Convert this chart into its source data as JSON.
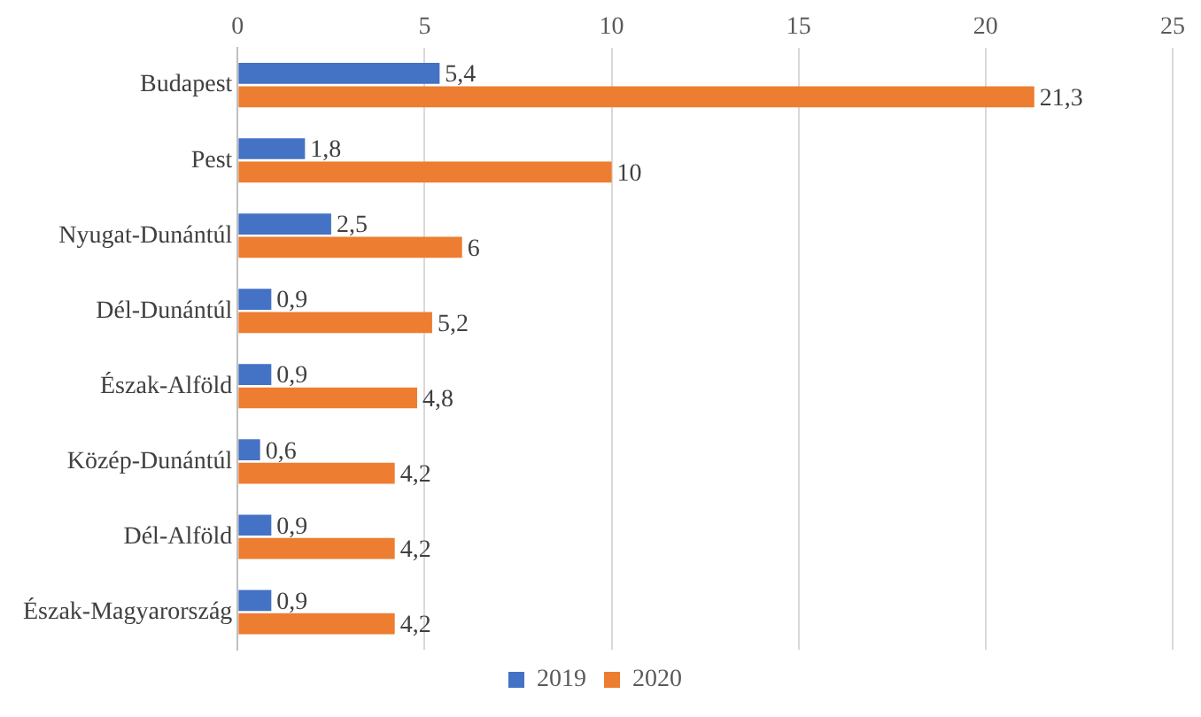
{
  "chart_data": {
    "type": "bar",
    "orientation": "horizontal",
    "categories": [
      "Budapest",
      "Pest",
      "Nyugat-Dunántúl",
      "Dél-Dunántúl",
      "Észak-Alföld",
      "Közép-Dunántúl",
      "Dél-Alföld",
      "Észak-Magyarország"
    ],
    "series": [
      {
        "name": "2019",
        "color": "#4472c4",
        "values": [
          5.4,
          1.8,
          2.5,
          0.9,
          0.9,
          0.6,
          0.9,
          0.9
        ],
        "value_labels": [
          "5,4",
          "1,8",
          "2,5",
          "0,9",
          "0,9",
          "0,6",
          "0,9",
          "0,9"
        ]
      },
      {
        "name": "2020",
        "color": "#ed7d31",
        "values": [
          21.3,
          10,
          6,
          5.2,
          4.8,
          4.2,
          4.2,
          4.2
        ],
        "value_labels": [
          "21,3",
          "10",
          "6",
          "5,2",
          "4,8",
          "4,2",
          "4,2",
          "4,2"
        ]
      }
    ],
    "xlim": [
      0,
      25
    ],
    "xticks": [
      0,
      5,
      10,
      15,
      20,
      25
    ],
    "grid": "x",
    "legend": "bottom"
  }
}
